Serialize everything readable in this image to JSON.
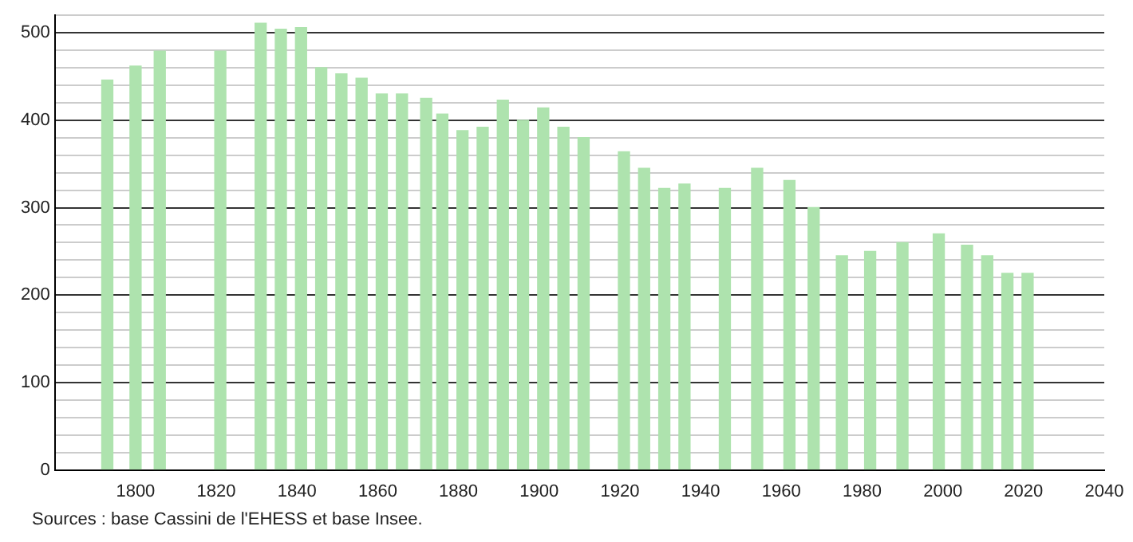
{
  "chart_data": {
    "type": "bar",
    "x": [
      1793,
      1800,
      1806,
      1821,
      1831,
      1836,
      1841,
      1846,
      1851,
      1856,
      1861,
      1866,
      1872,
      1876,
      1881,
      1886,
      1891,
      1896,
      1901,
      1906,
      1911,
      1921,
      1926,
      1931,
      1936,
      1946,
      1954,
      1962,
      1968,
      1975,
      1982,
      1990,
      1999,
      2006,
      2011,
      2016,
      2021
    ],
    "values": [
      446,
      462,
      479,
      479,
      511,
      504,
      506,
      460,
      453,
      448,
      430,
      430,
      425,
      407,
      388,
      392,
      423,
      400,
      414,
      392,
      380,
      364,
      345,
      322,
      327,
      322,
      345,
      331,
      300,
      245,
      250,
      260,
      270,
      257,
      245,
      225,
      225
    ],
    "color": "#aee3ae",
    "xlim": [
      1780,
      2040
    ],
    "xticks": [
      1800,
      1820,
      1840,
      1860,
      1880,
      1900,
      1920,
      1940,
      1960,
      1980,
      2000,
      2020,
      2040
    ],
    "ylim": [
      0,
      520
    ],
    "yticks": [
      0,
      {
        "value": 20,
        "label": null
      },
      {
        "value": 40,
        "label": null
      },
      {
        "value": 60,
        "label": null
      },
      {
        "value": 80,
        "label": null
      },
      100,
      {
        "value": 120,
        "label": null
      },
      {
        "value": 140,
        "label": null
      },
      {
        "value": 160,
        "label": null
      },
      {
        "value": 180,
        "label": null
      },
      200,
      {
        "value": 220,
        "label": null
      },
      {
        "value": 240,
        "label": null
      },
      {
        "value": 260,
        "label": null
      },
      {
        "value": 280,
        "label": null
      },
      300,
      {
        "value": 320,
        "label": null
      },
      {
        "value": 340,
        "label": null
      },
      {
        "value": 360,
        "label": null
      },
      {
        "value": 380,
        "label": null
      },
      400,
      {
        "value": 420,
        "label": null
      },
      {
        "value": 440,
        "label": null
      },
      {
        "value": 460,
        "label": null
      },
      {
        "value": 480,
        "label": null
      },
      500,
      {
        "value": 520,
        "label": null
      }
    ],
    "grid": "y",
    "annotations": [
      "Sources : base Cassini de l'EHESS et base Insee."
    ]
  }
}
